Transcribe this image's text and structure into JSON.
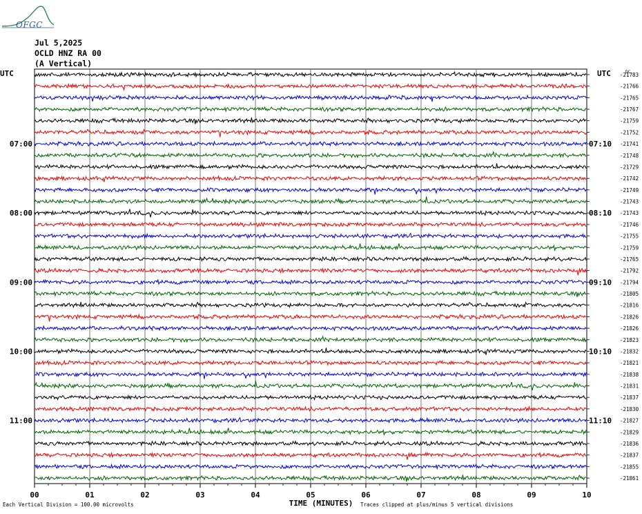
{
  "logo": {
    "text": "OFGC",
    "wave_color": "#2e8b57",
    "text_color": "#1f5faa"
  },
  "header": {
    "date": "Jul 5,2025",
    "station": "OCLD HNZ RA 00",
    "component": "(A Vertical)"
  },
  "chart_data": {
    "type": "line",
    "title": "",
    "left_axis_title": "UTC",
    "right_axis_title": "UTC",
    "xlabel": "TIME (MINUTES)",
    "x_ticks": [
      "00",
      "01",
      "02",
      "03",
      "04",
      "05",
      "06",
      "07",
      "08",
      "09",
      "10"
    ],
    "xlim": [
      0,
      10
    ],
    "grid": true,
    "left_time_labels": [
      {
        "row": 6,
        "label": "07:00"
      },
      {
        "row": 12,
        "label": "08:00"
      },
      {
        "row": 18,
        "label": "09:00"
      },
      {
        "row": 24,
        "label": "10:00"
      },
      {
        "row": 30,
        "label": "11:00"
      }
    ],
    "right_time_labels": [
      {
        "row": 6,
        "label": "07:10"
      },
      {
        "row": 12,
        "label": "08:10"
      },
      {
        "row": 18,
        "label": "09:10"
      },
      {
        "row": 24,
        "label": "10:10"
      },
      {
        "row": 30,
        "label": "11:10"
      }
    ],
    "trace_colors": [
      "#000000",
      "#ee0000",
      "#0000dd",
      "#006400"
    ],
    "trace_dc_offsets": [
      -21783,
      -21766,
      -21765,
      -21767,
      -21759,
      -21752,
      -21741,
      -21748,
      -21729,
      -21742,
      -21749,
      -21743,
      -21743,
      -21746,
      -21755,
      -21759,
      -21765,
      -21792,
      -21794,
      -21805,
      -21816,
      -21826,
      -21826,
      -21823,
      -21832,
      -21821,
      -21838,
      -21831,
      -21837,
      -21830,
      -21827,
      -21829,
      -21836,
      -21837,
      -21855,
      -21861
    ],
    "dc_label": "DC",
    "footer_left": "Each Vertical Division =  100.00 microvolts",
    "footer_right": "Traces clipped at plus/minus 5 vertical divisions"
  }
}
